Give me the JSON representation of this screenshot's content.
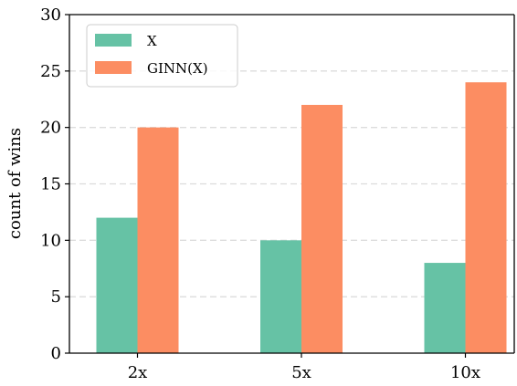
{
  "chart_data": {
    "type": "bar",
    "categories": [
      "2x",
      "5x",
      "10x"
    ],
    "series": [
      {
        "name": "X",
        "values": [
          12,
          10,
          8
        ],
        "color": "#66c2a5"
      },
      {
        "name": "GINN(X)",
        "values": [
          20,
          22,
          24
        ],
        "color": "#fc8d62"
      }
    ],
    "title": "",
    "xlabel": "",
    "ylabel": "count of wins",
    "ylim": [
      0,
      30
    ],
    "yticks": [
      "0",
      "5",
      "10",
      "15",
      "20",
      "25",
      "30"
    ],
    "grid": "horizontal-dashed",
    "legend_position": "top-left"
  }
}
